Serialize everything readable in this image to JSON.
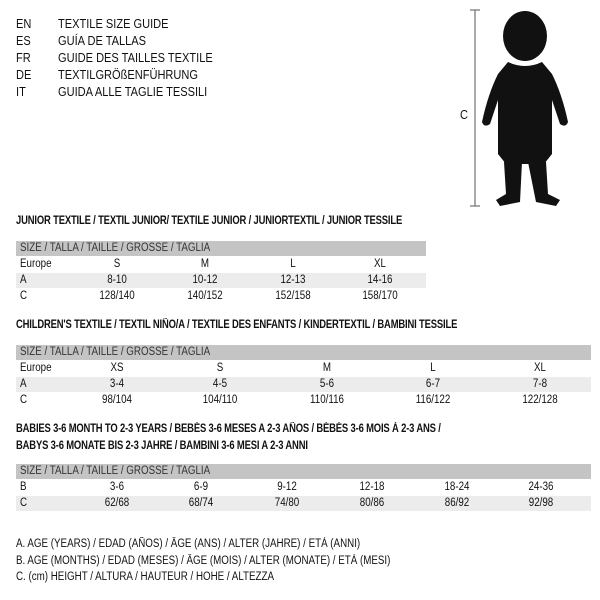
{
  "languages": [
    {
      "code": "EN",
      "text": "TEXTILE SIZE GUIDE"
    },
    {
      "code": "ES",
      "text": "GUÍA DE TALLAS"
    },
    {
      "code": "FR",
      "text": "GUIDE DES TAILLES TEXTILE"
    },
    {
      "code": "DE",
      "text": "TEXTILGRÖßENFÜHRUNG"
    },
    {
      "code": "IT",
      "text": "GUIDA ALLE TAGLIE TESSILI"
    }
  ],
  "figure": {
    "label": "C",
    "icon": "child-silhouette"
  },
  "header_label": "SIZE / TALLA / TAILLE / GRÖSSE / TAGLIA",
  "junior": {
    "title": "JUNIOR TEXTILE / TEXTIL JUNIOR/ TEXTILE JUNIOR / JUNIORTEXTIL / JUNIOR TESSILE",
    "rows": [
      {
        "label": "Europe",
        "cells": [
          "S",
          "M",
          "L",
          "XL"
        ]
      },
      {
        "label": "A",
        "cells": [
          "8-10",
          "10-12",
          "12-13",
          "14-16"
        ]
      },
      {
        "label": "C",
        "cells": [
          "128/140",
          "140/152",
          "152/158",
          "158/170"
        ]
      }
    ]
  },
  "children": {
    "title": "CHILDREN'S TEXTILE / TEXTIL NIÑO/A / TEXTILE DES ENFANTS / KINDERTEXTIL / BAMBINI TESSILE",
    "rows": [
      {
        "label": "Europe",
        "cells": [
          "XS",
          "S",
          "M",
          "L",
          "XL"
        ]
      },
      {
        "label": "A",
        "cells": [
          "3-4",
          "4-5",
          "5-6",
          "6-7",
          "7-8"
        ]
      },
      {
        "label": "C",
        "cells": [
          "98/104",
          "104/110",
          "110/116",
          "116/122",
          "122/128"
        ]
      }
    ]
  },
  "babies": {
    "title1": "BABIES 3-6 MONTH TO 2-3 YEARS / BEBÉS 3-6 MESES A 2-3 AÑOS / BÉBÉS 3-6 MOIS À 2-3 ANS /",
    "title2": "BABYS 3-6 MONATE BIS 2-3 JAHRE / BAMBINI 3-6 MESI A 2-3 ANNI",
    "rows": [
      {
        "label": "B",
        "cells": [
          "3-6",
          "6-9",
          "9-12",
          "12-18",
          "18-24",
          "24-36"
        ]
      },
      {
        "label": "C",
        "cells": [
          "62/68",
          "68/74",
          "74/80",
          "80/86",
          "86/92",
          "92/98"
        ]
      }
    ]
  },
  "legend": [
    "A. AGE (YEARS) / EDAD (AÑOS) / ÂGE (ANS) / ALTER (JAHRE) / ETÀ (ANNI)",
    "B. AGE (MONTHS) / EDAD (MESES) / ÂGE (MOIS) / ALTER (MONATE) / ETÀ (MESI)",
    "C. (cm) HEIGHT / ALTURA / HAUTEUR / HÖHE / ALTEZZA"
  ]
}
